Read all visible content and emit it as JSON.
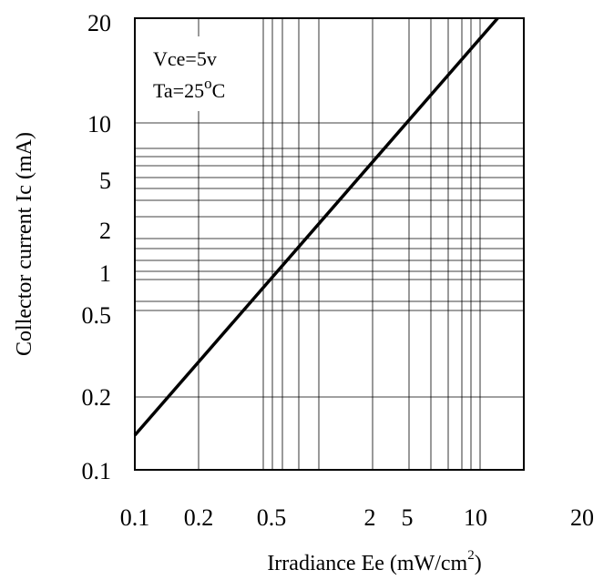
{
  "chart_data": {
    "type": "line",
    "title": "",
    "xlabel": "Irradiance Ee (mW/cm",
    "xlabel_superscript": "2",
    "xlabel_suffix": ")",
    "ylabel": "Collector current Ic (mA)",
    "x_scale": "log",
    "y_scale": "log",
    "xlim": [
      0.1,
      20
    ],
    "ylim": [
      0.1,
      20
    ],
    "grid": true,
    "x_tick_labels": [
      "0.1",
      "0.2",
      "0.5",
      "2",
      "5",
      "10",
      "20"
    ],
    "y_tick_labels": [
      "20",
      "10",
      "5",
      "2",
      "1",
      "0.5",
      "0.2",
      "0.1"
    ],
    "annotations": {
      "vce": "Vce=5v",
      "ta_prefix": "Ta=25",
      "ta_degree": "o",
      "ta_unit": "C"
    },
    "series": [
      {
        "color": "#000000",
        "x": [
          0.1,
          14
        ],
        "y": [
          0.15,
          20
        ]
      }
    ]
  }
}
